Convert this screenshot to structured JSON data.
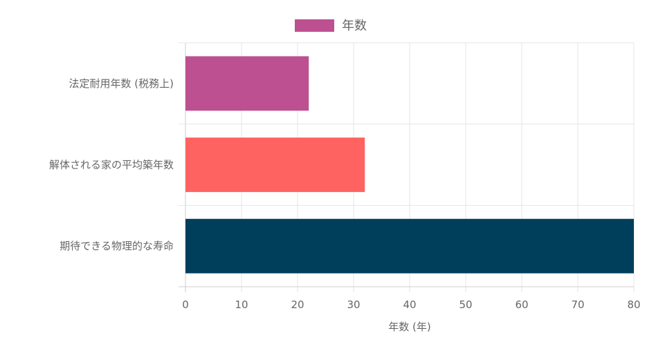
{
  "chart_data": {
    "type": "bar",
    "orientation": "horizontal",
    "categories": [
      "法定耐用年数 (税務上)",
      "解体される家の平均築年数",
      "期待できる物理的な寿命"
    ],
    "series": [
      {
        "name": "年数",
        "values": [
          22,
          32,
          80
        ],
        "colors": [
          "#bc5090",
          "#ff6361",
          "#003f5c"
        ]
      }
    ],
    "legend": {
      "label": "年数",
      "color": "#bc5090",
      "placement": "top-center"
    },
    "xlabel": "年数 (年)",
    "ylabel": "",
    "xlim": [
      0,
      80
    ],
    "xticks": [
      "0",
      "10",
      "20",
      "30",
      "40",
      "50",
      "60",
      "70",
      "80"
    ],
    "grid": true
  }
}
